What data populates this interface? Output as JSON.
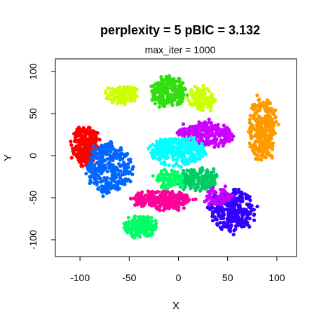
{
  "chart_data": {
    "type": "scatter",
    "title": "perplexity = 5 pBIC = 3.132",
    "subtitle": "max_iter = 1000",
    "xlabel": "X",
    "ylabel": "Y",
    "xlim": [
      -125,
      120
    ],
    "ylim": [
      -120,
      115
    ],
    "x_ticks": [
      -100,
      -50,
      0,
      50,
      100
    ],
    "y_ticks": [
      -100,
      -50,
      0,
      50,
      100
    ],
    "grid": false,
    "legend": "none",
    "clusters": [
      {
        "color": "#FF0000",
        "center": [
          -95,
          12
        ],
        "spread": [
          13,
          22
        ],
        "n": 260
      },
      {
        "color": "#CCFF00",
        "center": [
          -57,
          73
        ],
        "spread": [
          14,
          10
        ],
        "n": 130
      },
      {
        "color": "#33DD11",
        "center": [
          -10,
          75
        ],
        "spread": [
          17,
          17
        ],
        "n": 240
      },
      {
        "color": "#CCFF00",
        "center": [
          24,
          68
        ],
        "spread": [
          13,
          13
        ],
        "n": 130
      },
      {
        "color": "#FF9900",
        "center": [
          85,
          30
        ],
        "spread": [
          13,
          38
        ],
        "n": 300
      },
      {
        "color": "#CC00FF",
        "center": [
          28,
          25
        ],
        "spread": [
          28,
          13
        ],
        "n": 280
      },
      {
        "color": "#00FFFF",
        "center": [
          -1,
          5
        ],
        "spread": [
          28,
          16
        ],
        "n": 310
      },
      {
        "color": "#0066FF",
        "center": [
          -70,
          -15
        ],
        "spread": [
          22,
          30
        ],
        "n": 320
      },
      {
        "color": "#00CC66",
        "center": [
          20,
          -28
        ],
        "spread": [
          20,
          12
        ],
        "n": 180
      },
      {
        "color": "#FF0099",
        "center": [
          -18,
          -53
        ],
        "spread": [
          30,
          10
        ],
        "n": 260
      },
      {
        "color": "#3300FF",
        "center": [
          55,
          -65
        ],
        "spread": [
          22,
          25
        ],
        "n": 280
      },
      {
        "color": "#00FF66",
        "center": [
          -38,
          -85
        ],
        "spread": [
          16,
          12
        ],
        "n": 170
      },
      {
        "color": "#00FF66",
        "center": [
          -10,
          -28
        ],
        "spread": [
          14,
          10
        ],
        "n": 90
      },
      {
        "color": "#CC00FF",
        "center": [
          40,
          -48
        ],
        "spread": [
          14,
          10
        ],
        "n": 60
      }
    ]
  }
}
